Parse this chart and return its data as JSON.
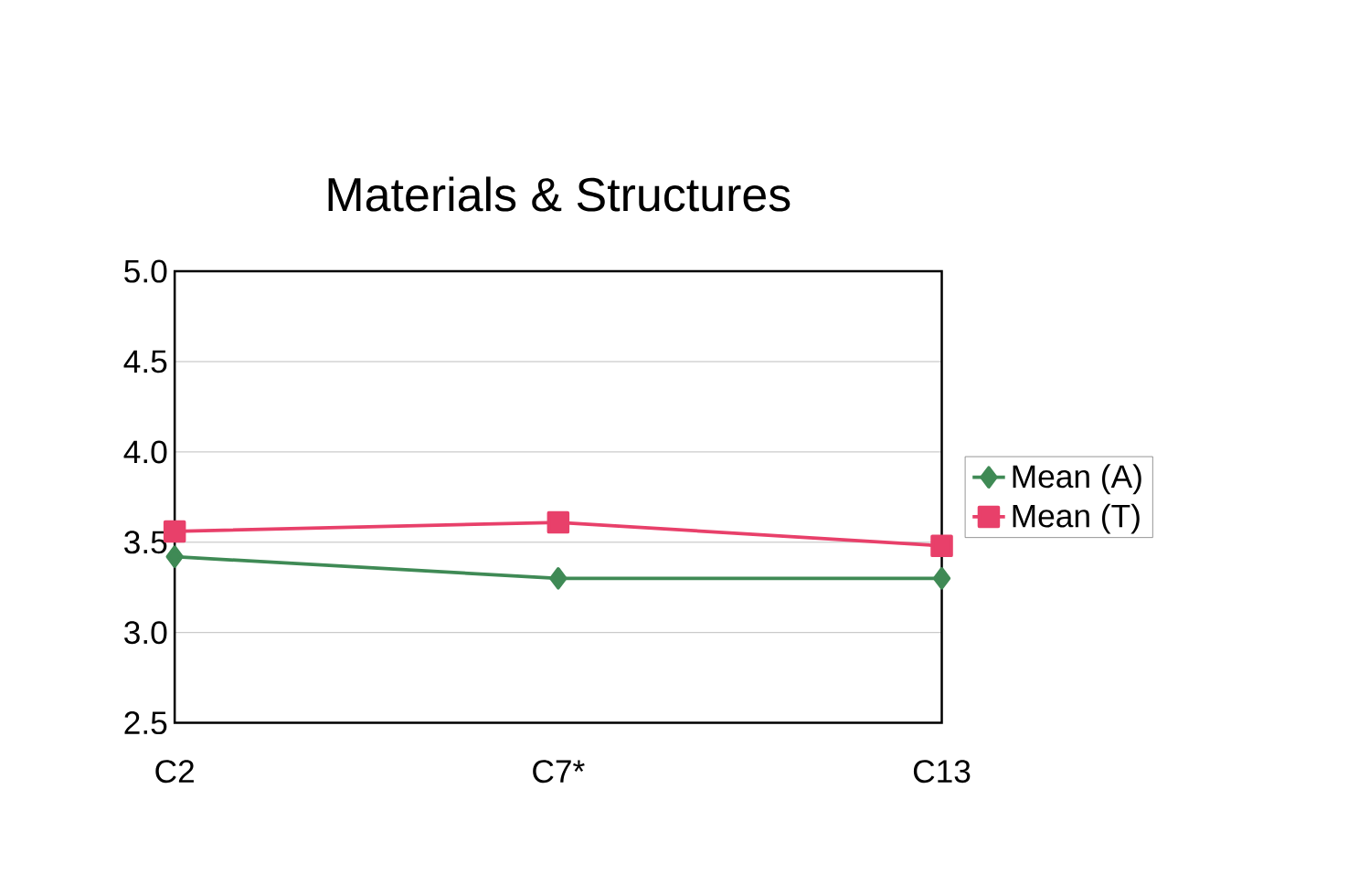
{
  "chart_data": {
    "type": "line",
    "title": "Materials & Structures",
    "categories": [
      "C2",
      "C7*",
      "C13"
    ],
    "series": [
      {
        "name": "Mean (A)",
        "color": "#3f8a55",
        "values": [
          3.42,
          3.3,
          3.3
        ],
        "marker": "diamond"
      },
      {
        "name": "Mean (T)",
        "color": "#e8406a",
        "values": [
          3.56,
          3.61,
          3.48
        ],
        "marker": "square"
      }
    ],
    "ylim": [
      2.5,
      5.0
    ],
    "yticks": [
      {
        "value": 2.5,
        "label": "2.5"
      },
      {
        "value": 3.0,
        "label": "3.0"
      },
      {
        "value": 3.5,
        "label": "3.5"
      },
      {
        "value": 4.0,
        "label": "4.0"
      },
      {
        "value": 4.5,
        "label": "4.5"
      },
      {
        "value": 5.0,
        "label": "5.0"
      }
    ],
    "grid": "y",
    "legend": "right",
    "line_style": "solid"
  }
}
